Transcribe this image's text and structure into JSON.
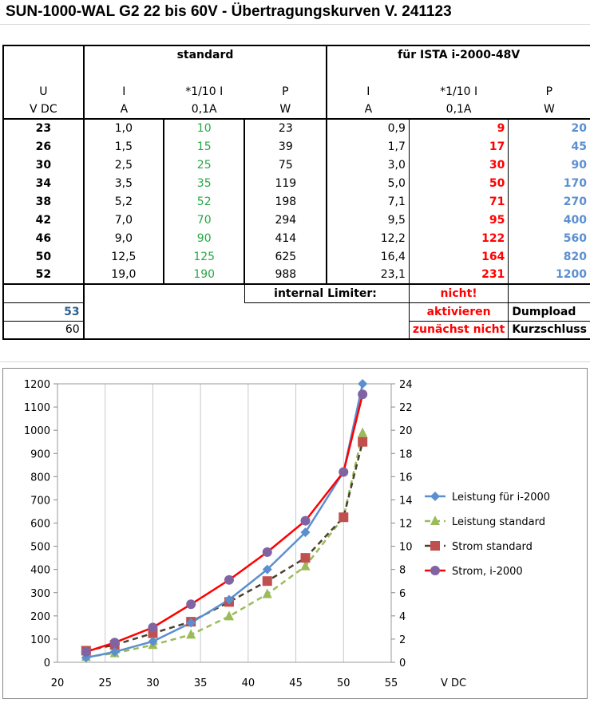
{
  "title": "SUN-1000-WAL G2 22 bis 60V - Übertragungskurven V. 241123",
  "header": {
    "group_standard": "standard",
    "group_ista": "für ISTA i-2000-48V",
    "col_u": "U",
    "col_i": "I",
    "col_i10": "*1/10 I",
    "col_p": "P",
    "unit_u": "V DC",
    "unit_a": "A",
    "unit_01a": "0,1A",
    "unit_w": "W"
  },
  "rows": [
    {
      "u": "23",
      "i": "1,0",
      "i10": "10",
      "p": "23",
      "i2": "0,9",
      "i10_2": "9",
      "p2": "20"
    },
    {
      "u": "26",
      "i": "1,5",
      "i10": "15",
      "p": "39",
      "i2": "1,7",
      "i10_2": "17",
      "p2": "45"
    },
    {
      "u": "30",
      "i": "2,5",
      "i10": "25",
      "p": "75",
      "i2": "3,0",
      "i10_2": "30",
      "p2": "90"
    },
    {
      "u": "34",
      "i": "3,5",
      "i10": "35",
      "p": "119",
      "i2": "5,0",
      "i10_2": "50",
      "p2": "170"
    },
    {
      "u": "38",
      "i": "5,2",
      "i10": "52",
      "p": "198",
      "i2": "7,1",
      "i10_2": "71",
      "p2": "270"
    },
    {
      "u": "42",
      "i": "7,0",
      "i10": "70",
      "p": "294",
      "i2": "9,5",
      "i10_2": "95",
      "p2": "400"
    },
    {
      "u": "46",
      "i": "9,0",
      "i10": "90",
      "p": "414",
      "i2": "12,2",
      "i10_2": "122",
      "p2": "560"
    },
    {
      "u": "50",
      "i": "12,5",
      "i10": "125",
      "p": "625",
      "i2": "16,4",
      "i10_2": "164",
      "p2": "820"
    },
    {
      "u": "52",
      "i": "19,0",
      "i10": "190",
      "p": "988",
      "i2": "23,1",
      "i10_2": "231",
      "p2": "1200"
    }
  ],
  "footer": {
    "internal_limiter": "internal Limiter:",
    "nicht": "nicht!",
    "aktivieren": "aktivieren",
    "zunaechst_nicht": "zunächst nicht",
    "dumpload": "Dumpload",
    "kurzschluss": "Kurzschluss",
    "u53": "53",
    "u60": "60"
  },
  "colors": {
    "green": "#27a844",
    "red": "#ff0000",
    "blue": "#5b8fd0",
    "dark_blue": "#2f5f90",
    "series_leistung_i2000": "#5b8fd0",
    "series_leistung_standard": "#9bbb59",
    "series_strom_standard": "#c0504d",
    "series_strom_i2000": "#8064a2"
  },
  "chart_data": {
    "type": "line",
    "xlabel": "V DC",
    "xlim": [
      20,
      55
    ],
    "x_ticks": [
      20,
      25,
      30,
      35,
      40,
      45,
      50,
      55
    ],
    "ylim_left": [
      0,
      1200
    ],
    "y_ticks_left": [
      0,
      100,
      200,
      300,
      400,
      500,
      600,
      700,
      800,
      900,
      1000,
      1100,
      1200
    ],
    "ylim_right": [
      0,
      24
    ],
    "y_ticks_right": [
      0,
      2,
      4,
      6,
      8,
      10,
      12,
      14,
      16,
      18,
      20,
      22,
      24
    ],
    "grid": "vertical",
    "legend_position": "right",
    "series": [
      {
        "name": "Leistung für i-2000",
        "axis": "left",
        "color": "#5b8fd0",
        "line": "solid",
        "marker": "diamond",
        "x": [
          23,
          26,
          30,
          34,
          38,
          42,
          46,
          50,
          52
        ],
        "values": [
          20,
          45,
          90,
          170,
          270,
          400,
          560,
          820,
          1200
        ]
      },
      {
        "name": "Leistung standard",
        "axis": "left",
        "color": "#9bbb59",
        "line": "dashed",
        "marker": "triangle",
        "x": [
          23,
          26,
          30,
          34,
          38,
          42,
          46,
          50,
          52
        ],
        "values": [
          23,
          39,
          75,
          119,
          198,
          294,
          414,
          625,
          988
        ]
      },
      {
        "name": "Strom standard",
        "axis": "right",
        "color": "#c0504d",
        "line": "dashed-dark",
        "marker": "square",
        "x": [
          23,
          26,
          30,
          34,
          38,
          42,
          46,
          50,
          52
        ],
        "values": [
          1.0,
          1.5,
          2.5,
          3.5,
          5.2,
          7.0,
          9.0,
          12.5,
          19.0
        ]
      },
      {
        "name": "Strom, i-2000",
        "axis": "right",
        "color": "#ff0000",
        "marker_color": "#8064a2",
        "line": "solid",
        "marker": "circle",
        "x": [
          23,
          26,
          30,
          34,
          38,
          42,
          46,
          50,
          52
        ],
        "values": [
          0.9,
          1.7,
          3.0,
          5.0,
          7.1,
          9.5,
          12.2,
          16.4,
          23.1
        ]
      }
    ]
  }
}
